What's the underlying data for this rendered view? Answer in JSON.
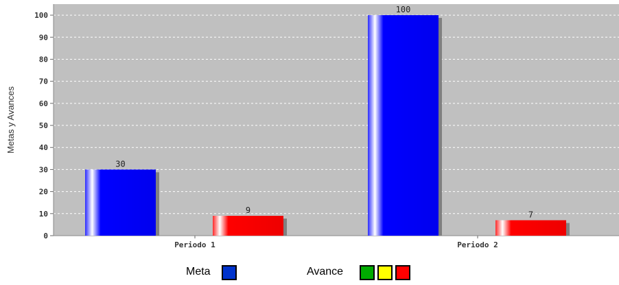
{
  "chart_data": {
    "type": "bar",
    "categories": [
      "Periodo 1",
      "Periodo 2"
    ],
    "series": [
      {
        "name": "Meta",
        "values": [
          30,
          100
        ],
        "color": "#0000ff"
      },
      {
        "name": "Avance",
        "values": [
          9,
          7
        ],
        "color": "#ff0000"
      }
    ],
    "ylabel": "Metas y Avances",
    "ylim": [
      0,
      105
    ],
    "yticks": [
      0,
      10,
      20,
      30,
      40,
      50,
      60,
      70,
      80,
      90,
      100
    ],
    "grid": true,
    "legend_position": "bottom"
  },
  "legend": {
    "meta_label": "Meta",
    "meta_color": "#0033cc",
    "avance_label": "Avance",
    "avance_colors": [
      "#00aa00",
      "#ffff00",
      "#ff0000"
    ]
  }
}
